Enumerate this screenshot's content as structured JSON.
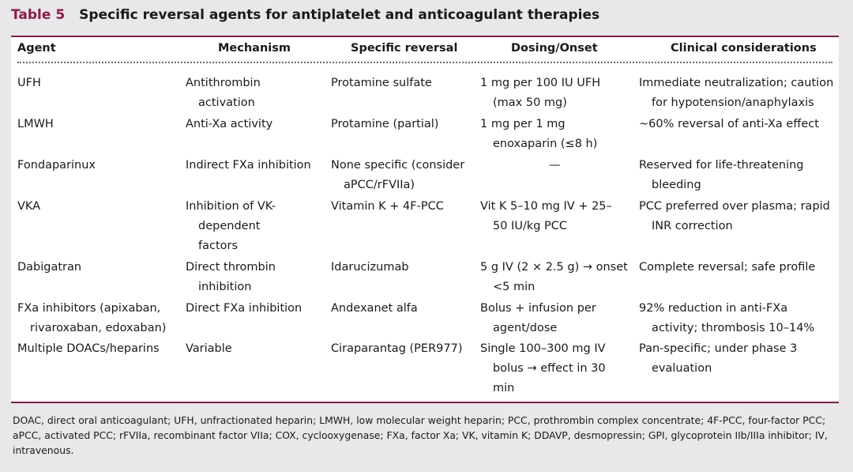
{
  "table": {
    "number": "Table 5",
    "title": "Specific reversal agents for antiplatelet and anticoagulant therapies",
    "columns": [
      "Agent",
      "Mechanism",
      "Specific reversal",
      "Dosing/Onset",
      "Clinical considerations"
    ],
    "rows": [
      {
        "agent": "UFH",
        "mechanism": "Antithrombin activation",
        "reversal": "Protamine sulfate",
        "dosing": "1 mg per 100 IU UFH (max 50 mg)",
        "considerations": "Immediate neutralization; caution for hypotension/anaphylaxis"
      },
      {
        "agent": "LMWH",
        "mechanism": "Anti-Xa activity",
        "reversal": "Protamine (partial)",
        "dosing": "1 mg per 1 mg enoxaparin (≤8 h)",
        "considerations": "~60% reversal of anti-Xa effect"
      },
      {
        "agent": "Fondaparinux",
        "mechanism": "Indirect FXa inhibition",
        "reversal": "None specific (consider aPCC/rFVIIa)",
        "dosing": "—",
        "considerations": "Reserved for life-threatening bleeding"
      },
      {
        "agent": "VKA",
        "mechanism": "Inhibition of VK-dependent factors",
        "reversal": "Vitamin K + 4F-PCC",
        "dosing": "Vit K 5–10 mg IV + 25–50 IU/kg PCC",
        "considerations": "PCC preferred over plasma; rapid INR correction"
      },
      {
        "agent": "Dabigatran",
        "mechanism": "Direct thrombin inhibition",
        "reversal": "Idarucizumab",
        "dosing": "5 g IV (2 × 2.5 g) → onset <5 min",
        "considerations": "Complete reversal; safe profile"
      },
      {
        "agent": "FXa inhibitors (apixaban, rivaroxaban, edoxaban)",
        "mechanism": "Direct FXa inhibition",
        "reversal": "Andexanet alfa",
        "dosing": "Bolus + infusion per agent/dose",
        "considerations": "92% reduction in anti-FXa activity; thrombosis 10–14%"
      },
      {
        "agent": "Multiple DOACs/heparins",
        "mechanism": "Variable",
        "reversal": "Ciraparantag (PER977)",
        "dosing": "Single 100–300 mg IV bolus → effect in 30 min",
        "considerations": "Pan-specific; under phase 3 evaluation"
      }
    ],
    "footnote": "DOAC, direct oral anticoagulant; UFH, unfractionated heparin; LMWH, low molecular weight heparin; PCC, prothrombin complex concentrate; 4F-PCC, four-factor PCC; aPCC, activated PCC; rFVIIa, recombinant factor VIIa; COX, cyclooxygenase; FXa, factor Xa; VK, vitamin K; DDAVP, desmopressin; GPI, glycoprotein IIb/IIIa inhibitor; IV, intravenous."
  }
}
